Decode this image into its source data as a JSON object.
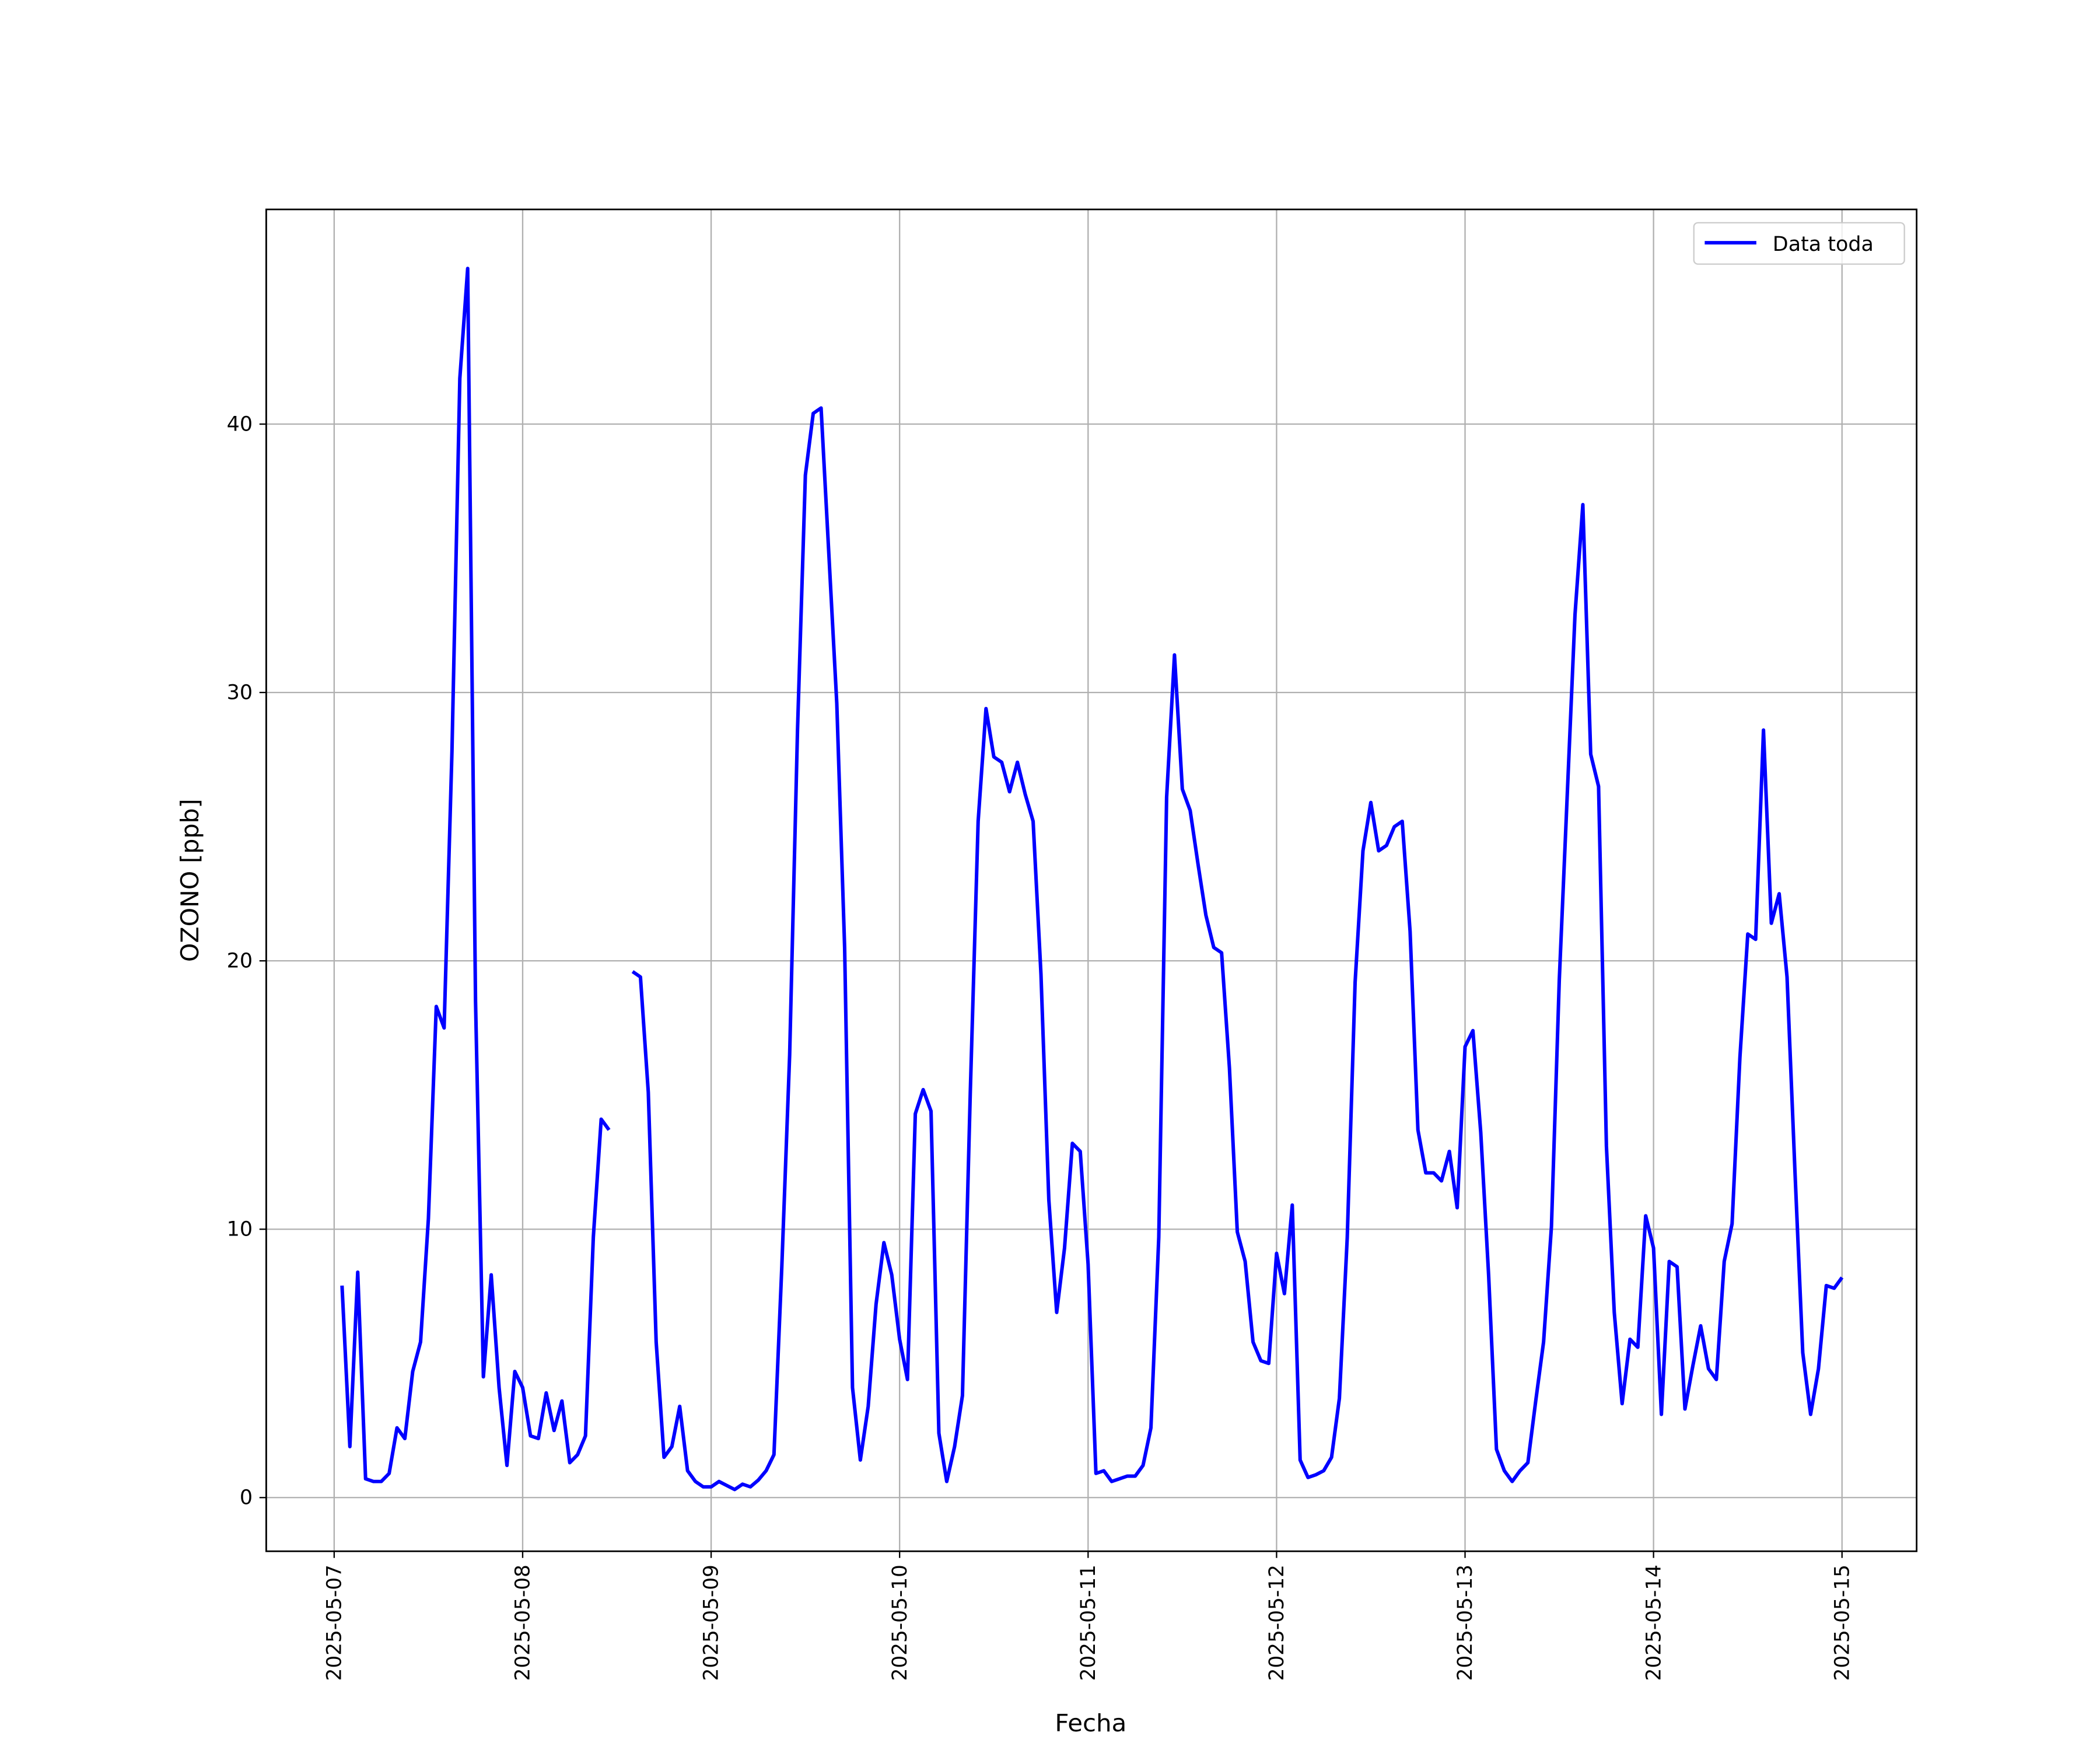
{
  "chart_data": {
    "type": "line",
    "x_label": "Fecha",
    "y_label": "OZONO [ppb]",
    "grid": true,
    "legend_position": "upper right",
    "xlim": [
      "2025-05-06T15:21",
      "2025-05-15T09:30"
    ],
    "xticks": [
      "2025-05-07",
      "2025-05-08",
      "2025-05-09",
      "2025-05-10",
      "2025-05-11",
      "2025-05-12",
      "2025-05-13",
      "2025-05-14",
      "2025-05-15"
    ],
    "ylim": [
      -2,
      48
    ],
    "yticks": [
      0,
      10,
      20,
      30,
      40
    ],
    "x": [
      "2025-05-07T01:00",
      "2025-05-07T02:00",
      "2025-05-07T03:00",
      "2025-05-07T04:00",
      "2025-05-07T05:00",
      "2025-05-07T06:00",
      "2025-05-07T07:00",
      "2025-05-07T08:00",
      "2025-05-07T09:00",
      "2025-05-07T10:00",
      "2025-05-07T11:00",
      "2025-05-07T12:00",
      "2025-05-07T13:00",
      "2025-05-07T14:00",
      "2025-05-07T15:00",
      "2025-05-07T16:00",
      "2025-05-07T17:00",
      "2025-05-07T18:00",
      "2025-05-07T19:00",
      "2025-05-07T20:00",
      "2025-05-07T21:00",
      "2025-05-07T22:00",
      "2025-05-07T23:00",
      "2025-05-08T00:00",
      "2025-05-08T01:00",
      "2025-05-08T02:00",
      "2025-05-08T03:00",
      "2025-05-08T04:00",
      "2025-05-08T05:00",
      "2025-05-08T06:00",
      "2025-05-08T07:00",
      "2025-05-08T08:00",
      "2025-05-08T09:00",
      "2025-05-08T10:00",
      "2025-05-08T11:00",
      "2025-05-08T12:00",
      "2025-05-08T13:00",
      "2025-05-08T14:00",
      "2025-05-08T15:00",
      "2025-05-08T16:00",
      "2025-05-08T17:00",
      "2025-05-08T18:00",
      "2025-05-08T19:00",
      "2025-05-08T20:00",
      "2025-05-08T21:00",
      "2025-05-08T22:00",
      "2025-05-08T23:00",
      "2025-05-09T00:00",
      "2025-05-09T01:00",
      "2025-05-09T02:00",
      "2025-05-09T03:00",
      "2025-05-09T04:00",
      "2025-05-09T05:00",
      "2025-05-09T06:00",
      "2025-05-09T07:00",
      "2025-05-09T08:00",
      "2025-05-09T09:00",
      "2025-05-09T10:00",
      "2025-05-09T11:00",
      "2025-05-09T12:00",
      "2025-05-09T13:00",
      "2025-05-09T14:00",
      "2025-05-09T15:00",
      "2025-05-09T16:00",
      "2025-05-09T17:00",
      "2025-05-09T18:00",
      "2025-05-09T19:00",
      "2025-05-09T20:00",
      "2025-05-09T21:00",
      "2025-05-09T22:00",
      "2025-05-09T23:00",
      "2025-05-10T00:00",
      "2025-05-10T01:00",
      "2025-05-10T02:00",
      "2025-05-10T03:00",
      "2025-05-10T04:00",
      "2025-05-10T05:00",
      "2025-05-10T06:00",
      "2025-05-10T07:00",
      "2025-05-10T08:00",
      "2025-05-10T09:00",
      "2025-05-10T10:00",
      "2025-05-10T11:00",
      "2025-05-10T12:00",
      "2025-05-10T13:00",
      "2025-05-10T14:00",
      "2025-05-10T15:00",
      "2025-05-10T16:00",
      "2025-05-10T17:00",
      "2025-05-10T18:00",
      "2025-05-10T19:00",
      "2025-05-10T20:00",
      "2025-05-10T21:00",
      "2025-05-10T22:00",
      "2025-05-10T23:00",
      "2025-05-11T00:00",
      "2025-05-11T01:00",
      "2025-05-11T02:00",
      "2025-05-11T03:00",
      "2025-05-11T04:00",
      "2025-05-11T05:00",
      "2025-05-11T06:00",
      "2025-05-11T07:00",
      "2025-05-11T08:00",
      "2025-05-11T09:00",
      "2025-05-11T10:00",
      "2025-05-11T11:00",
      "2025-05-11T12:00",
      "2025-05-11T13:00",
      "2025-05-11T14:00",
      "2025-05-11T15:00",
      "2025-05-11T16:00",
      "2025-05-11T17:00",
      "2025-05-11T18:00",
      "2025-05-11T19:00",
      "2025-05-11T20:00",
      "2025-05-11T21:00",
      "2025-05-11T22:00",
      "2025-05-11T23:00",
      "2025-05-12T00:00",
      "2025-05-12T01:00",
      "2025-05-12T02:00",
      "2025-05-12T03:00",
      "2025-05-12T04:00",
      "2025-05-12T05:00",
      "2025-05-12T06:00",
      "2025-05-12T07:00",
      "2025-05-12T08:00",
      "2025-05-12T09:00",
      "2025-05-12T10:00",
      "2025-05-12T11:00",
      "2025-05-12T12:00",
      "2025-05-12T13:00",
      "2025-05-12T14:00",
      "2025-05-12T15:00",
      "2025-05-12T16:00",
      "2025-05-12T17:00",
      "2025-05-12T18:00",
      "2025-05-12T19:00",
      "2025-05-12T20:00",
      "2025-05-12T21:00",
      "2025-05-12T22:00",
      "2025-05-12T23:00",
      "2025-05-13T00:00",
      "2025-05-13T01:00",
      "2025-05-13T02:00",
      "2025-05-13T03:00",
      "2025-05-13T04:00",
      "2025-05-13T05:00",
      "2025-05-13T06:00",
      "2025-05-13T07:00",
      "2025-05-13T08:00",
      "2025-05-13T09:00",
      "2025-05-13T10:00",
      "2025-05-13T11:00",
      "2025-05-13T12:00",
      "2025-05-13T13:00",
      "2025-05-13T14:00",
      "2025-05-13T15:00",
      "2025-05-13T16:00",
      "2025-05-13T17:00",
      "2025-05-13T18:00",
      "2025-05-13T19:00",
      "2025-05-13T20:00",
      "2025-05-13T21:00",
      "2025-05-13T22:00",
      "2025-05-13T23:00",
      "2025-05-14T00:00",
      "2025-05-14T01:00",
      "2025-05-14T02:00",
      "2025-05-14T03:00",
      "2025-05-14T04:00",
      "2025-05-14T05:00",
      "2025-05-14T06:00",
      "2025-05-14T07:00",
      "2025-05-14T08:00",
      "2025-05-14T09:00",
      "2025-05-14T10:00",
      "2025-05-14T11:00",
      "2025-05-14T12:00",
      "2025-05-14T13:00",
      "2025-05-14T14:00",
      "2025-05-14T15:00",
      "2025-05-14T16:00",
      "2025-05-14T17:00",
      "2025-05-14T18:00",
      "2025-05-14T19:00",
      "2025-05-14T20:00",
      "2025-05-14T21:00",
      "2025-05-14T22:00",
      "2025-05-14T23:00",
      "2025-05-15T00:00"
    ],
    "series": [
      {
        "name": "Data toda",
        "color": "#0000ff",
        "values": [
          7.9,
          1.9,
          8.4,
          0.7,
          0.6,
          0.6,
          0.9,
          2.6,
          2.2,
          4.7,
          5.8,
          10.4,
          18.3,
          17.5,
          27.8,
          41.7,
          45.8,
          18.5,
          4.5,
          8.3,
          4.1,
          1.2,
          4.7,
          4.1,
          2.3,
          2.2,
          3.9,
          2.5,
          3.6,
          1.3,
          1.6,
          2.3,
          9.7,
          14.1,
          13.7,
          null,
          null,
          19.6,
          19.4,
          15.1,
          5.8,
          1.5,
          1.9,
          3.4,
          1.0,
          0.6,
          0.4,
          0.4,
          0.6,
          0.45,
          0.3,
          0.5,
          0.4,
          0.65,
          1.0,
          1.6,
          8.6,
          16.5,
          28.6,
          38.1,
          40.4,
          40.6,
          35.1,
          29.6,
          20.5,
          4.1,
          1.4,
          3.4,
          7.2,
          9.5,
          8.3,
          5.9,
          4.4,
          14.3,
          15.2,
          14.4,
          2.4,
          0.6,
          1.9,
          3.8,
          15.1,
          25.2,
          29.4,
          27.6,
          27.4,
          26.3,
          27.4,
          26.2,
          25.2,
          19.5,
          11.1,
          6.9,
          9.3,
          13.2,
          12.9,
          8.7,
          0.9,
          1.0,
          0.6,
          0.7,
          0.8,
          0.8,
          1.2,
          2.6,
          9.7,
          26.1,
          31.4,
          26.4,
          25.6,
          23.6,
          21.7,
          20.5,
          20.3,
          16.0,
          9.9,
          8.8,
          5.8,
          5.1,
          5.0,
          9.1,
          7.6,
          10.9,
          1.4,
          0.75,
          0.85,
          1.0,
          1.5,
          3.7,
          9.7,
          19.2,
          24.1,
          25.9,
          24.1,
          24.3,
          25.0,
          25.2,
          21.1,
          13.7,
          12.1,
          12.1,
          11.8,
          12.9,
          10.8,
          16.8,
          17.4,
          13.6,
          8.3,
          1.8,
          1.0,
          0.6,
          1.0,
          1.3,
          3.6,
          5.8,
          10.1,
          19.3,
          26.1,
          32.9,
          37.0,
          27.7,
          26.5,
          13.1,
          6.9,
          3.5,
          5.9,
          5.6,
          10.5,
          9.3,
          3.1,
          8.8,
          8.6,
          3.3,
          4.9,
          6.4,
          4.8,
          4.4,
          8.8,
          10.2,
          16.4,
          21.0,
          20.8,
          28.6,
          21.4,
          22.5,
          19.4,
          12.2,
          5.4,
          3.1,
          4.8,
          7.9,
          7.8,
          8.2
        ]
      }
    ]
  }
}
